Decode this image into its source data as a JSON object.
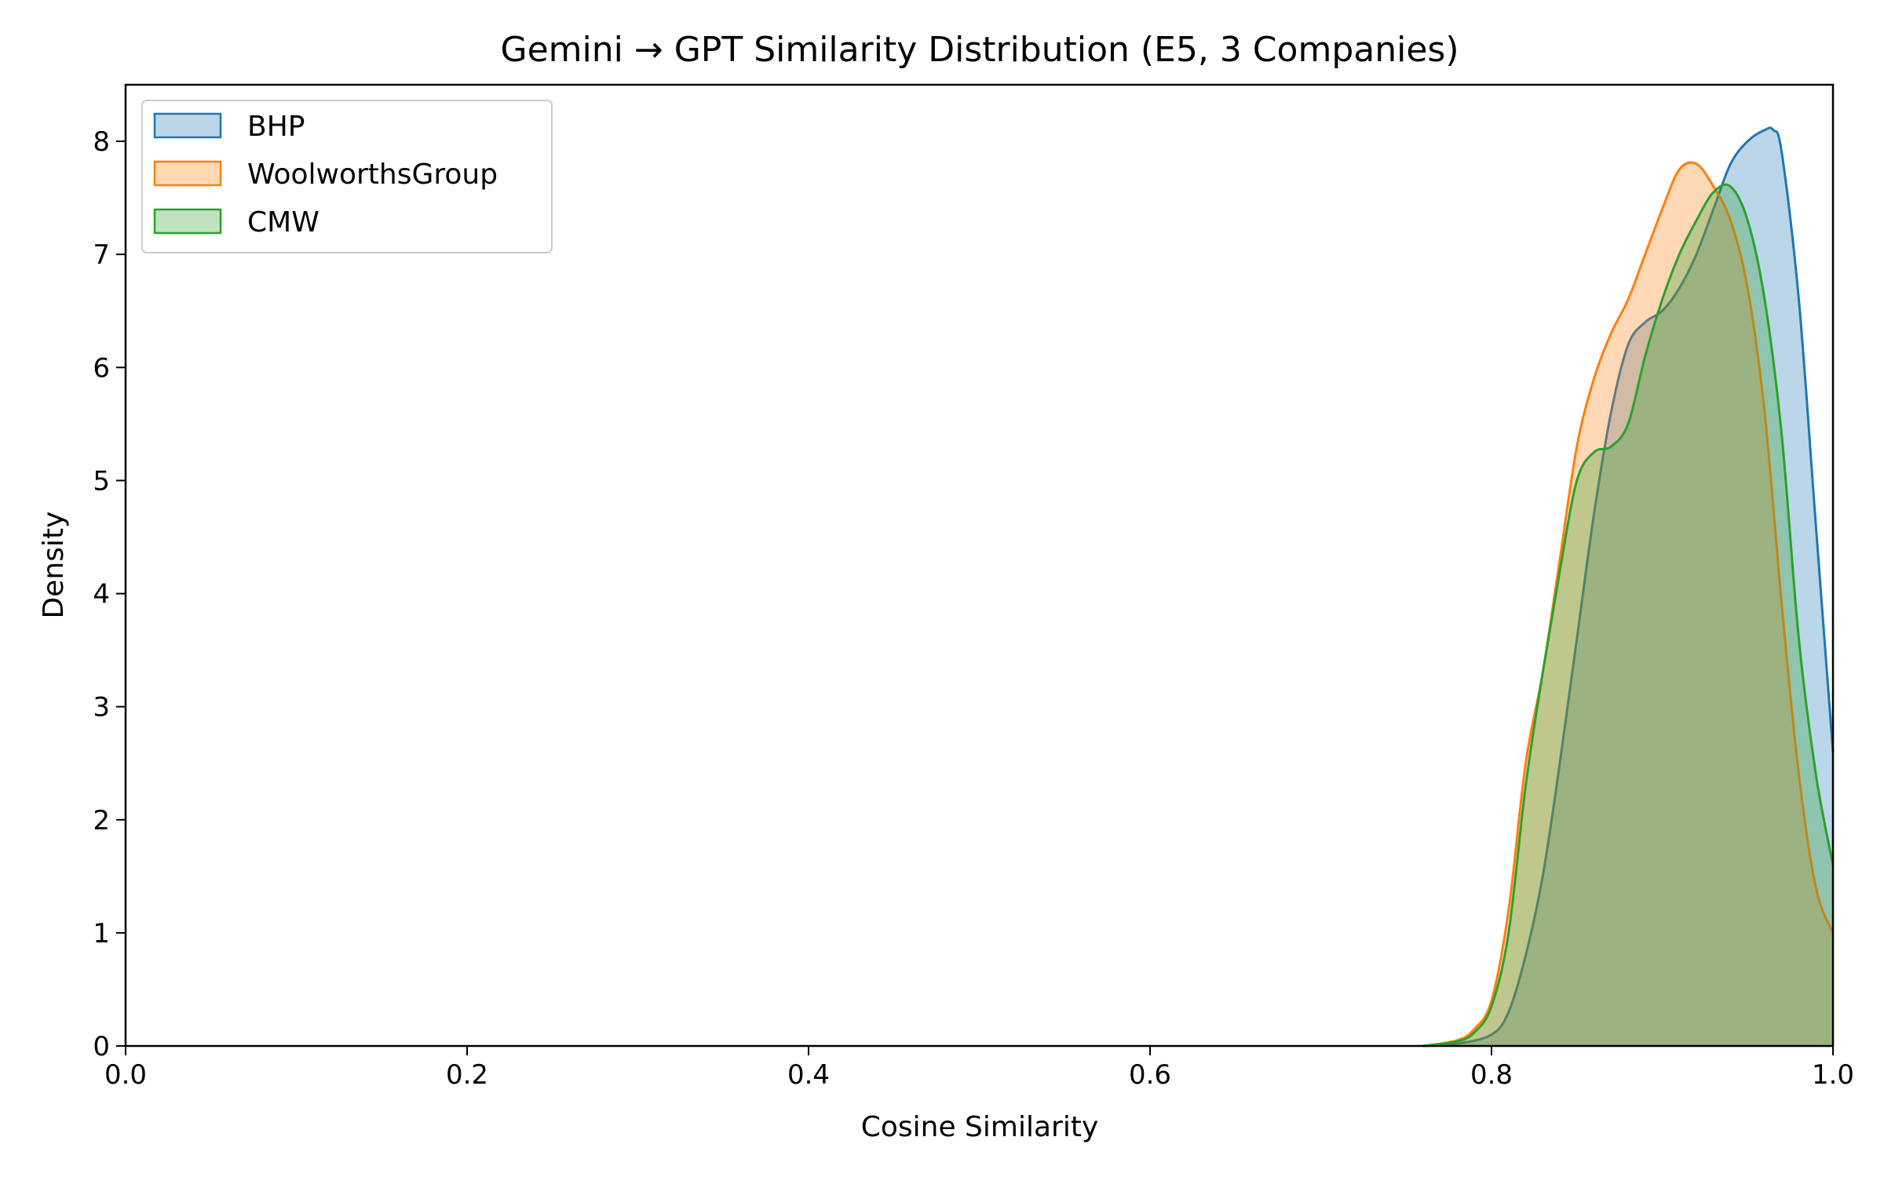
{
  "chart_data": {
    "type": "area",
    "title": "Gemini → GPT Similarity Distribution (E5, 3 Companies)",
    "xlabel": "Cosine Similarity",
    "ylabel": "Density",
    "xlim": [
      0.0,
      1.0
    ],
    "ylim": [
      0,
      8.5
    ],
    "xticks": [
      0.0,
      0.2,
      0.4,
      0.6,
      0.8,
      1.0
    ],
    "xtick_labels": [
      "0.0",
      "0.2",
      "0.4",
      "0.6",
      "0.8",
      "1.0"
    ],
    "yticks": [
      0,
      1,
      2,
      3,
      4,
      5,
      6,
      7,
      8
    ],
    "ytick_labels": [
      "0",
      "1",
      "2",
      "3",
      "4",
      "5",
      "6",
      "7",
      "8"
    ],
    "grid": false,
    "legend_position": "top-left",
    "series": [
      {
        "name": "BHP",
        "color": "#1f77b4",
        "x": [
          0.76,
          0.78,
          0.8,
          0.81,
          0.82,
          0.83,
          0.84,
          0.85,
          0.86,
          0.87,
          0.88,
          0.89,
          0.9,
          0.91,
          0.92,
          0.93,
          0.94,
          0.95,
          0.96,
          0.965,
          0.97,
          0.98,
          0.99,
          1.0
        ],
        "values": [
          0.0,
          0.02,
          0.1,
          0.3,
          0.8,
          1.5,
          2.5,
          3.6,
          4.7,
          5.6,
          6.2,
          6.4,
          6.5,
          6.7,
          7.0,
          7.4,
          7.8,
          8.0,
          8.1,
          8.1,
          7.9,
          6.6,
          4.6,
          2.6
        ]
      },
      {
        "name": "WoolworthsGroup",
        "color": "#ff7f0e",
        "x": [
          0.76,
          0.78,
          0.79,
          0.8,
          0.81,
          0.82,
          0.83,
          0.84,
          0.85,
          0.86,
          0.87,
          0.88,
          0.89,
          0.9,
          0.91,
          0.92,
          0.93,
          0.94,
          0.95,
          0.96,
          0.97,
          0.98,
          0.99,
          1.0
        ],
        "values": [
          0.0,
          0.05,
          0.15,
          0.4,
          1.2,
          2.5,
          3.3,
          4.3,
          5.3,
          5.9,
          6.3,
          6.6,
          7.0,
          7.4,
          7.75,
          7.8,
          7.6,
          7.3,
          6.7,
          5.6,
          3.9,
          2.4,
          1.4,
          1.0
        ]
      },
      {
        "name": "CMW",
        "color": "#2ca02c",
        "x": [
          0.76,
          0.78,
          0.79,
          0.8,
          0.81,
          0.82,
          0.83,
          0.84,
          0.85,
          0.86,
          0.87,
          0.88,
          0.89,
          0.9,
          0.91,
          0.92,
          0.93,
          0.94,
          0.95,
          0.96,
          0.97,
          0.98,
          0.99,
          1.0
        ],
        "values": [
          0.0,
          0.04,
          0.12,
          0.35,
          1.0,
          2.3,
          3.3,
          4.2,
          5.0,
          5.25,
          5.3,
          5.5,
          6.1,
          6.6,
          7.0,
          7.3,
          7.55,
          7.6,
          7.3,
          6.6,
          5.4,
          3.6,
          2.4,
          1.6
        ]
      }
    ]
  }
}
